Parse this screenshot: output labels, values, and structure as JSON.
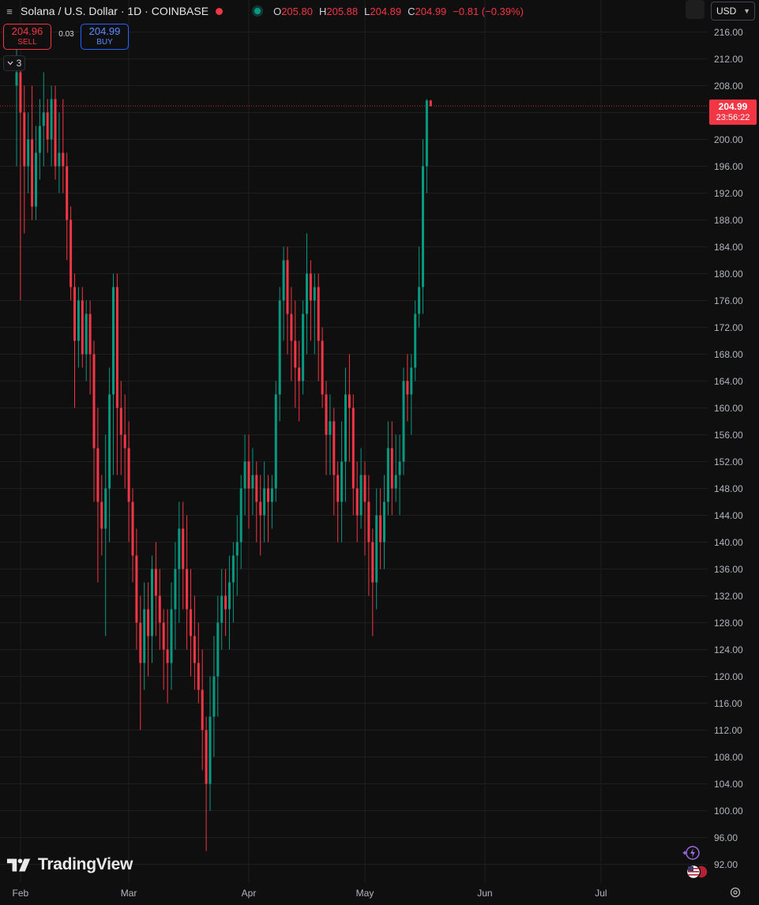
{
  "header": {
    "symbol_title": "Solana / U.S. Dollar · 1D · COINBASE",
    "ohlc": {
      "o_label": "O",
      "o_value": "205.80",
      "h_label": "H",
      "h_value": "205.88",
      "l_label": "L",
      "l_value": "204.89",
      "c_label": "C",
      "c_value": "204.99",
      "change": "−0.81 (−0.39%)"
    },
    "currency": "USD"
  },
  "trade": {
    "sell_price": "204.96",
    "sell_label": "SELL",
    "spread": "0.03",
    "buy_price": "204.99",
    "buy_label": "BUY"
  },
  "indicators_collapsed_count": "3",
  "last_price": {
    "price": "204.99",
    "countdown": "23:56:22"
  },
  "logo_text": "TradingView",
  "colors": {
    "up": "#089981",
    "down": "#f23645",
    "background": "#0f0f0f",
    "grid": "#1f1f1f"
  },
  "icons": [
    "menu-icon",
    "gear-icon",
    "flash-icon",
    "us-flag-icon",
    "chevron-down-icon",
    "collapse-chevron-icon"
  ],
  "chart_data": {
    "type": "candlestick",
    "symbol": "SOLUSD",
    "interval": "1D",
    "exchange": "COINBASE",
    "y_ticks": [
      92,
      96,
      100,
      104,
      108,
      112,
      116,
      120,
      124,
      128,
      132,
      136,
      140,
      144,
      148,
      152,
      156,
      160,
      164,
      168,
      172,
      176,
      180,
      184,
      188,
      192,
      196,
      200,
      204,
      208,
      212,
      216
    ],
    "y_tick_labels": [
      "92.00",
      "96.00",
      "100.00",
      "104.00",
      "108.00",
      "112.00",
      "116.00",
      "120.00",
      "124.00",
      "128.00",
      "132.00",
      "136.00",
      "140.00",
      "144.00",
      "148.00",
      "152.00",
      "156.00",
      "160.00",
      "164.00",
      "168.00",
      "172.00",
      "176.00",
      "180.00",
      "184.00",
      "188.00",
      "192.00",
      "196.00",
      "200.00",
      "204.00",
      "208.00",
      "212.00",
      "216.00"
    ],
    "ylim": [
      90,
      218
    ],
    "x_labels": [
      {
        "label": "Feb",
        "date": "2025-02-01"
      },
      {
        "label": "Mar",
        "date": "2025-03-01"
      },
      {
        "label": "Apr",
        "date": "2025-04-01"
      },
      {
        "label": "May",
        "date": "2025-05-01"
      },
      {
        "label": "Jun",
        "date": "2025-06-01"
      },
      {
        "label": "Jul",
        "date": "2025-07-01"
      }
    ],
    "grid": true,
    "last_price_line": 204.99,
    "start_date": "2025-01-31",
    "candles": [
      [
        208,
        214,
        196,
        210
      ],
      [
        210,
        212,
        176,
        204
      ],
      [
        204,
        208,
        186,
        196
      ],
      [
        196,
        204,
        192,
        200
      ],
      [
        200,
        208,
        188,
        190
      ],
      [
        190,
        202,
        188,
        198
      ],
      [
        198,
        206,
        194,
        202
      ],
      [
        202,
        210,
        196,
        204
      ],
      [
        204,
        206,
        198,
        200
      ],
      [
        200,
        208,
        196,
        206
      ],
      [
        206,
        208,
        194,
        196
      ],
      [
        196,
        204,
        192,
        198
      ],
      [
        198,
        206,
        192,
        196
      ],
      [
        196,
        198,
        182,
        188
      ],
      [
        188,
        190,
        176,
        178
      ],
      [
        178,
        180,
        160,
        170
      ],
      [
        170,
        178,
        166,
        176
      ],
      [
        176,
        178,
        166,
        168
      ],
      [
        168,
        176,
        164,
        174
      ],
      [
        174,
        176,
        162,
        168
      ],
      [
        168,
        170,
        146,
        154
      ],
      [
        154,
        160,
        134,
        146
      ],
      [
        146,
        150,
        138,
        142
      ],
      [
        142,
        156,
        126,
        148
      ],
      [
        148,
        166,
        140,
        162
      ],
      [
        162,
        180,
        150,
        178
      ],
      [
        178,
        180,
        150,
        160
      ],
      [
        160,
        164,
        150,
        156
      ],
      [
        156,
        162,
        148,
        154
      ],
      [
        154,
        158,
        140,
        146
      ],
      [
        146,
        148,
        134,
        138
      ],
      [
        138,
        142,
        124,
        128
      ],
      [
        128,
        132,
        112,
        122
      ],
      [
        122,
        134,
        118,
        130
      ],
      [
        130,
        134,
        120,
        126
      ],
      [
        126,
        138,
        122,
        136
      ],
      [
        136,
        140,
        126,
        132
      ],
      [
        132,
        136,
        124,
        128
      ],
      [
        128,
        130,
        118,
        124
      ],
      [
        124,
        130,
        116,
        122
      ],
      [
        122,
        134,
        118,
        130
      ],
      [
        130,
        140,
        124,
        136
      ],
      [
        136,
        146,
        128,
        142
      ],
      [
        142,
        146,
        130,
        136
      ],
      [
        136,
        144,
        124,
        130
      ],
      [
        130,
        136,
        120,
        126
      ],
      [
        126,
        132,
        118,
        122
      ],
      [
        122,
        128,
        116,
        118
      ],
      [
        118,
        124,
        106,
        112
      ],
      [
        112,
        114,
        94,
        104
      ],
      [
        104,
        120,
        100,
        114
      ],
      [
        114,
        126,
        108,
        120
      ],
      [
        120,
        132,
        114,
        128
      ],
      [
        128,
        136,
        124,
        132
      ],
      [
        132,
        136,
        126,
        130
      ],
      [
        130,
        138,
        124,
        134
      ],
      [
        134,
        140,
        128,
        138
      ],
      [
        138,
        144,
        132,
        140
      ],
      [
        140,
        150,
        136,
        148
      ],
      [
        148,
        156,
        144,
        152
      ],
      [
        152,
        156,
        142,
        148
      ],
      [
        148,
        154,
        144,
        150
      ],
      [
        150,
        152,
        140,
        146
      ],
      [
        146,
        150,
        138,
        144
      ],
      [
        144,
        152,
        140,
        148
      ],
      [
        148,
        150,
        140,
        146
      ],
      [
        146,
        150,
        142,
        148
      ],
      [
        148,
        164,
        146,
        162
      ],
      [
        162,
        178,
        158,
        176
      ],
      [
        176,
        184,
        170,
        182
      ],
      [
        182,
        184,
        168,
        174
      ],
      [
        174,
        178,
        164,
        170
      ],
      [
        170,
        176,
        160,
        166
      ],
      [
        166,
        170,
        158,
        164
      ],
      [
        164,
        176,
        162,
        174
      ],
      [
        174,
        186,
        168,
        180
      ],
      [
        180,
        182,
        170,
        176
      ],
      [
        176,
        180,
        168,
        178
      ],
      [
        178,
        180,
        164,
        170
      ],
      [
        170,
        172,
        160,
        162
      ],
      [
        162,
        164,
        150,
        156
      ],
      [
        156,
        162,
        150,
        158
      ],
      [
        158,
        160,
        144,
        150
      ],
      [
        150,
        152,
        140,
        146
      ],
      [
        146,
        158,
        140,
        152
      ],
      [
        152,
        166,
        146,
        162
      ],
      [
        162,
        168,
        152,
        160
      ],
      [
        160,
        162,
        144,
        148
      ],
      [
        148,
        152,
        140,
        144
      ],
      [
        144,
        154,
        142,
        150
      ],
      [
        150,
        152,
        138,
        146
      ],
      [
        146,
        150,
        132,
        140
      ],
      [
        140,
        142,
        126,
        134
      ],
      [
        134,
        148,
        130,
        144
      ],
      [
        144,
        148,
        136,
        140
      ],
      [
        140,
        150,
        136,
        146
      ],
      [
        146,
        158,
        144,
        154
      ],
      [
        154,
        158,
        144,
        148
      ],
      [
        148,
        156,
        146,
        150
      ],
      [
        150,
        156,
        144,
        152
      ],
      [
        152,
        166,
        150,
        164
      ],
      [
        164,
        168,
        158,
        162
      ],
      [
        162,
        168,
        156,
        166
      ],
      [
        166,
        176,
        164,
        174
      ],
      [
        174,
        184,
        172,
        178
      ],
      [
        178,
        200,
        174,
        196
      ],
      [
        196,
        206,
        192,
        205.8
      ],
      [
        205.8,
        205.88,
        204.89,
        204.99
      ]
    ]
  }
}
